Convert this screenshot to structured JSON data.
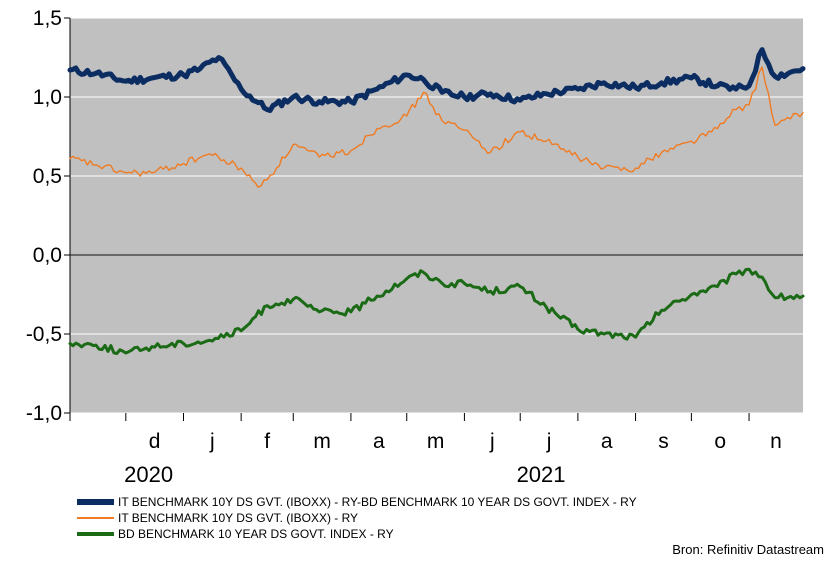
{
  "chart_data": {
    "type": "line",
    "title": "",
    "xlabel": "",
    "ylabel": "",
    "ylim": [
      -1.0,
      1.5
    ],
    "y_ticks": [
      "1,5",
      "1,0",
      "0,5",
      "0,0",
      "-0,5",
      "-1,0"
    ],
    "y_tick_values": [
      1.5,
      1.0,
      0.5,
      0.0,
      -0.5,
      -1.0
    ],
    "x_start": "2020-11-01",
    "x_end": "2021-11-30",
    "month_labels": [
      "d",
      "j",
      "f",
      "m",
      "a",
      "m",
      "j",
      "j",
      "a",
      "s",
      "o",
      "n"
    ],
    "month_dates": [
      "2020-12-01",
      "2021-01-01",
      "2021-02-01",
      "2021-03-01",
      "2021-04-01",
      "2021-05-01",
      "2021-06-01",
      "2021-07-01",
      "2021-08-01",
      "2021-09-01",
      "2021-10-01",
      "2021-11-01"
    ],
    "year_labels": [
      "2020",
      "2021"
    ],
    "year_dates": [
      "2020-12-01",
      "2021-07-01"
    ],
    "plot_background": "#c0c0c0",
    "grid": true,
    "legend_position": "bottom",
    "series": [
      {
        "name": "IT BENCHMARK 10Y DS GVT. (IBOXX) - RY-BD BENCHMARK 10 YEAR DS GOVT. INDEX - RY",
        "color": "#0b2d62",
        "x": [
          "2020-11-01",
          "2020-11-15",
          "2020-12-01",
          "2020-12-15",
          "2021-01-01",
          "2021-01-10",
          "2021-01-20",
          "2021-02-01",
          "2021-02-15",
          "2021-03-01",
          "2021-03-15",
          "2021-04-01",
          "2021-04-15",
          "2021-05-01",
          "2021-05-10",
          "2021-05-20",
          "2021-06-01",
          "2021-06-15",
          "2021-07-01",
          "2021-07-15",
          "2021-08-01",
          "2021-08-15",
          "2021-09-01",
          "2021-09-15",
          "2021-10-01",
          "2021-10-15",
          "2021-10-25",
          "2021-11-01",
          "2021-11-08",
          "2021-11-15",
          "2021-11-30"
        ],
        "y": [
          1.17,
          1.15,
          1.1,
          1.12,
          1.14,
          1.18,
          1.25,
          1.05,
          0.92,
          1.0,
          0.97,
          0.97,
          1.05,
          1.14,
          1.11,
          1.03,
          1.0,
          1.02,
          0.98,
          1.02,
          1.05,
          1.09,
          1.06,
          1.09,
          1.12,
          1.07,
          1.05,
          1.07,
          1.3,
          1.13,
          1.18
        ]
      },
      {
        "name": "IT BENCHMARK 10Y DS GVT. (IBOXX) - RY",
        "color": "#f07b22",
        "x": [
          "2020-11-01",
          "2020-11-15",
          "2020-12-01",
          "2020-12-15",
          "2021-01-01",
          "2021-01-15",
          "2021-02-01",
          "2021-02-10",
          "2021-02-20",
          "2021-03-01",
          "2021-03-15",
          "2021-04-01",
          "2021-04-15",
          "2021-05-01",
          "2021-05-10",
          "2021-05-20",
          "2021-06-01",
          "2021-06-15",
          "2021-07-01",
          "2021-07-15",
          "2021-08-01",
          "2021-08-15",
          "2021-09-01",
          "2021-09-15",
          "2021-10-01",
          "2021-10-15",
          "2021-10-25",
          "2021-11-01",
          "2021-11-08",
          "2021-11-15",
          "2021-11-30"
        ],
        "y": [
          0.61,
          0.57,
          0.52,
          0.52,
          0.58,
          0.64,
          0.55,
          0.43,
          0.55,
          0.7,
          0.62,
          0.66,
          0.8,
          0.88,
          1.03,
          0.85,
          0.79,
          0.65,
          0.78,
          0.72,
          0.62,
          0.55,
          0.55,
          0.65,
          0.72,
          0.8,
          0.92,
          0.95,
          1.19,
          0.82,
          0.9
        ]
      },
      {
        "name": "BD BENCHMARK 10 YEAR DS GOVT. INDEX - RY",
        "color": "#1b6b16",
        "x": [
          "2020-11-01",
          "2020-11-15",
          "2020-12-01",
          "2020-12-15",
          "2021-01-01",
          "2021-01-15",
          "2021-02-01",
          "2021-02-15",
          "2021-03-01",
          "2021-03-15",
          "2021-04-01",
          "2021-04-15",
          "2021-05-01",
          "2021-05-10",
          "2021-05-20",
          "2021-06-01",
          "2021-06-15",
          "2021-07-01",
          "2021-07-15",
          "2021-08-01",
          "2021-08-15",
          "2021-09-01",
          "2021-09-15",
          "2021-10-01",
          "2021-10-15",
          "2021-10-25",
          "2021-11-01",
          "2021-11-08",
          "2021-11-15",
          "2021-11-30"
        ],
        "y": [
          -0.56,
          -0.57,
          -0.62,
          -0.58,
          -0.56,
          -0.54,
          -0.48,
          -0.32,
          -0.28,
          -0.36,
          -0.36,
          -0.26,
          -0.15,
          -0.11,
          -0.18,
          -0.18,
          -0.23,
          -0.2,
          -0.33,
          -0.47,
          -0.5,
          -0.52,
          -0.35,
          -0.25,
          -0.2,
          -0.12,
          -0.09,
          -0.14,
          -0.27,
          -0.26
        ]
      }
    ]
  },
  "source": "Bron: Refinitiv Datastream"
}
